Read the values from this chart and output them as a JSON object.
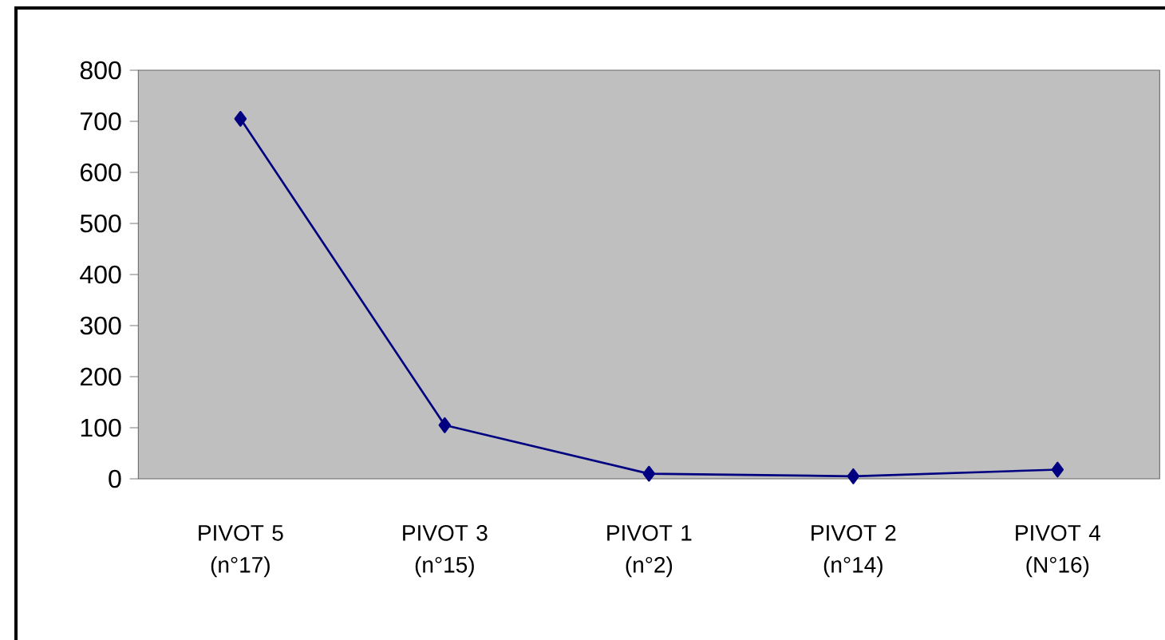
{
  "chart_data": {
    "type": "line",
    "categories": [
      "PIVOT 5\n(n°17)",
      "PIVOT 3\n(n°15)",
      "PIVOT 1\n(n°2)",
      "PIVOT 2\n(n°14)",
      "PIVOT 4\n(N°16)"
    ],
    "values": [
      705,
      105,
      10,
      5,
      18
    ],
    "color": "#000080",
    "marker": "diamond",
    "line_style": "solid",
    "ylim": [
      0,
      800
    ],
    "yticks": [
      0,
      100,
      200,
      300,
      400,
      500,
      600,
      700,
      800
    ],
    "grid": false
  }
}
